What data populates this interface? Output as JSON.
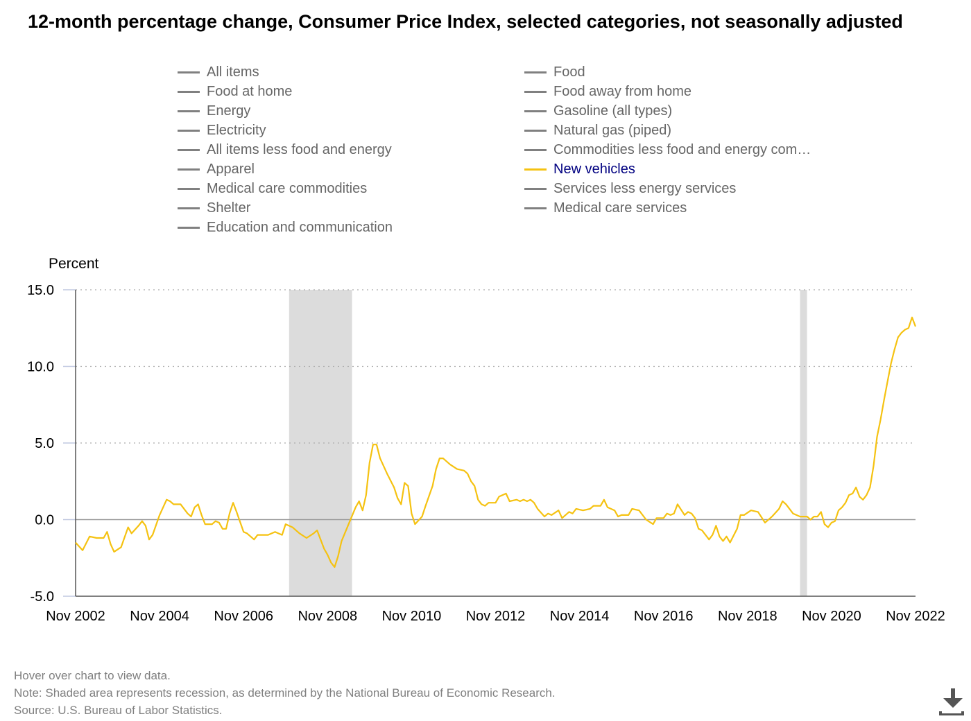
{
  "title": "12-month percentage change, Consumer Price Index, selected categories, not seasonally adjusted",
  "legend": {
    "items": [
      {
        "label": "All items",
        "active": false
      },
      {
        "label": "Food at home",
        "active": false
      },
      {
        "label": "Energy",
        "active": false
      },
      {
        "label": "Electricity",
        "active": false
      },
      {
        "label": "All items less food and energy",
        "active": false
      },
      {
        "label": "Apparel",
        "active": false
      },
      {
        "label": "Medical care commodities",
        "active": false
      },
      {
        "label": "Shelter",
        "active": false
      },
      {
        "label": "Education and communication",
        "active": false
      },
      {
        "label": "Food",
        "active": false
      },
      {
        "label": "Food away from home",
        "active": false
      },
      {
        "label": "Gasoline (all types)",
        "active": false
      },
      {
        "label": "Natural gas (piped)",
        "active": false
      },
      {
        "label": "Commodities less food and energy com…",
        "active": false
      },
      {
        "label": "New vehicles",
        "active": true
      },
      {
        "label": "Services less energy services",
        "active": false
      },
      {
        "label": "Medical care services",
        "active": false
      }
    ]
  },
  "chart_data": {
    "type": "line",
    "ylabel": "Percent",
    "ylim": [
      -5.0,
      15.0
    ],
    "yticks": [
      "15.0",
      "10.0",
      "5.0",
      "0.0",
      "-5.0"
    ],
    "xticks": [
      "Nov 2002",
      "Nov 2004",
      "Nov 2006",
      "Nov 2008",
      "Nov 2010",
      "Nov 2012",
      "Nov 2014",
      "Nov 2016",
      "Nov 2018",
      "Nov 2020",
      "Nov 2022"
    ],
    "xlim": [
      "2002-11",
      "2022-11"
    ],
    "grid": true,
    "recessions": [
      [
        "2007-12",
        "2009-06"
      ],
      [
        "2020-02",
        "2020-04"
      ]
    ],
    "series": [
      {
        "name": "New vehicles",
        "color": "#f5c211",
        "points": [
          [
            "2002-11",
            -1.5
          ],
          [
            "2003-01",
            -2.0
          ],
          [
            "2003-03",
            -1.1
          ],
          [
            "2003-05",
            -1.2
          ],
          [
            "2003-07",
            -1.2
          ],
          [
            "2003-08",
            -0.8
          ],
          [
            "2003-09",
            -1.6
          ],
          [
            "2003-10",
            -2.1
          ],
          [
            "2003-12",
            -1.8
          ],
          [
            "2004-02",
            -0.5
          ],
          [
            "2004-03",
            -0.9
          ],
          [
            "2004-05",
            -0.4
          ],
          [
            "2004-06",
            -0.1
          ],
          [
            "2004-07",
            -0.4
          ],
          [
            "2004-08",
            -1.3
          ],
          [
            "2004-09",
            -1.0
          ],
          [
            "2004-11",
            0.3
          ],
          [
            "2005-01",
            1.3
          ],
          [
            "2005-02",
            1.2
          ],
          [
            "2005-03",
            1.0
          ],
          [
            "2005-05",
            1.0
          ],
          [
            "2005-07",
            0.4
          ],
          [
            "2005-08",
            0.2
          ],
          [
            "2005-09",
            0.8
          ],
          [
            "2005-10",
            1.0
          ],
          [
            "2005-11",
            0.3
          ],
          [
            "2005-12",
            -0.3
          ],
          [
            "2006-02",
            -0.3
          ],
          [
            "2006-03",
            -0.1
          ],
          [
            "2006-04",
            -0.2
          ],
          [
            "2006-05",
            -0.6
          ],
          [
            "2006-06",
            -0.6
          ],
          [
            "2006-07",
            0.4
          ],
          [
            "2006-08",
            1.1
          ],
          [
            "2006-09",
            0.5
          ],
          [
            "2006-11",
            -0.8
          ],
          [
            "2006-12",
            -0.9
          ],
          [
            "2007-02",
            -1.3
          ],
          [
            "2007-03",
            -1.0
          ],
          [
            "2007-06",
            -1.0
          ],
          [
            "2007-07",
            -0.9
          ],
          [
            "2007-08",
            -0.8
          ],
          [
            "2007-10",
            -1.0
          ],
          [
            "2007-11",
            -0.3
          ],
          [
            "2008-01",
            -0.5
          ],
          [
            "2008-03",
            -0.9
          ],
          [
            "2008-05",
            -1.2
          ],
          [
            "2008-07",
            -0.9
          ],
          [
            "2008-08",
            -0.7
          ],
          [
            "2008-09",
            -1.3
          ],
          [
            "2008-10",
            -1.9
          ],
          [
            "2008-11",
            -2.3
          ],
          [
            "2008-12",
            -2.8
          ],
          [
            "2009-01",
            -3.1
          ],
          [
            "2009-02",
            -2.4
          ],
          [
            "2009-03",
            -1.4
          ],
          [
            "2009-05",
            -0.3
          ],
          [
            "2009-07",
            0.8
          ],
          [
            "2009-08",
            1.2
          ],
          [
            "2009-09",
            0.6
          ],
          [
            "2009-10",
            1.6
          ],
          [
            "2009-11",
            3.7
          ],
          [
            "2009-12",
            4.9
          ],
          [
            "2010-01",
            4.9
          ],
          [
            "2010-02",
            4.0
          ],
          [
            "2010-04",
            3.0
          ],
          [
            "2010-06",
            2.1
          ],
          [
            "2010-07",
            1.4
          ],
          [
            "2010-08",
            1.0
          ],
          [
            "2010-09",
            2.4
          ],
          [
            "2010-10",
            2.2
          ],
          [
            "2010-11",
            0.4
          ],
          [
            "2010-12",
            -0.3
          ],
          [
            "2011-02",
            0.2
          ],
          [
            "2011-03",
            0.9
          ],
          [
            "2011-05",
            2.2
          ],
          [
            "2011-06",
            3.3
          ],
          [
            "2011-07",
            4.0
          ],
          [
            "2011-08",
            4.0
          ],
          [
            "2011-10",
            3.6
          ],
          [
            "2011-12",
            3.3
          ],
          [
            "2012-02",
            3.2
          ],
          [
            "2012-03",
            3.0
          ],
          [
            "2012-04",
            2.5
          ],
          [
            "2012-05",
            2.2
          ],
          [
            "2012-06",
            1.3
          ],
          [
            "2012-07",
            1.0
          ],
          [
            "2012-08",
            0.9
          ],
          [
            "2012-09",
            1.1
          ],
          [
            "2012-11",
            1.1
          ],
          [
            "2012-12",
            1.5
          ],
          [
            "2013-02",
            1.7
          ],
          [
            "2013-03",
            1.2
          ],
          [
            "2013-05",
            1.3
          ],
          [
            "2013-06",
            1.2
          ],
          [
            "2013-07",
            1.3
          ],
          [
            "2013-08",
            1.2
          ],
          [
            "2013-09",
            1.3
          ],
          [
            "2013-10",
            1.1
          ],
          [
            "2013-11",
            0.7
          ],
          [
            "2014-01",
            0.2
          ],
          [
            "2014-02",
            0.4
          ],
          [
            "2014-03",
            0.3
          ],
          [
            "2014-05",
            0.6
          ],
          [
            "2014-06",
            0.1
          ],
          [
            "2014-08",
            0.5
          ],
          [
            "2014-09",
            0.4
          ],
          [
            "2014-10",
            0.7
          ],
          [
            "2014-12",
            0.6
          ],
          [
            "2015-02",
            0.7
          ],
          [
            "2015-03",
            0.9
          ],
          [
            "2015-05",
            0.9
          ],
          [
            "2015-06",
            1.3
          ],
          [
            "2015-07",
            0.8
          ],
          [
            "2015-09",
            0.6
          ],
          [
            "2015-10",
            0.2
          ],
          [
            "2015-11",
            0.3
          ],
          [
            "2016-01",
            0.3
          ],
          [
            "2016-02",
            0.7
          ],
          [
            "2016-04",
            0.6
          ],
          [
            "2016-06",
            0.0
          ],
          [
            "2016-08",
            -0.3
          ],
          [
            "2016-09",
            0.1
          ],
          [
            "2016-11",
            0.1
          ],
          [
            "2016-12",
            0.4
          ],
          [
            "2017-01",
            0.3
          ],
          [
            "2017-02",
            0.4
          ],
          [
            "2017-03",
            1.0
          ],
          [
            "2017-05",
            0.3
          ],
          [
            "2017-06",
            0.5
          ],
          [
            "2017-07",
            0.4
          ],
          [
            "2017-08",
            0.1
          ],
          [
            "2017-09",
            -0.6
          ],
          [
            "2017-10",
            -0.7
          ],
          [
            "2017-12",
            -1.3
          ],
          [
            "2018-01",
            -1.0
          ],
          [
            "2018-02",
            -0.4
          ],
          [
            "2018-03",
            -1.1
          ],
          [
            "2018-04",
            -1.4
          ],
          [
            "2018-05",
            -1.1
          ],
          [
            "2018-06",
            -1.5
          ],
          [
            "2018-08",
            -0.6
          ],
          [
            "2018-09",
            0.3
          ],
          [
            "2018-10",
            0.3
          ],
          [
            "2018-12",
            0.6
          ],
          [
            "2019-02",
            0.5
          ],
          [
            "2019-04",
            -0.2
          ],
          [
            "2019-06",
            0.2
          ],
          [
            "2019-08",
            0.7
          ],
          [
            "2019-09",
            1.2
          ],
          [
            "2019-10",
            1.0
          ],
          [
            "2019-12",
            0.4
          ],
          [
            "2020-02",
            0.2
          ],
          [
            "2020-04",
            0.2
          ],
          [
            "2020-05",
            0.0
          ],
          [
            "2020-06",
            0.2
          ],
          [
            "2020-07",
            0.2
          ],
          [
            "2020-08",
            0.5
          ],
          [
            "2020-09",
            -0.3
          ],
          [
            "2020-10",
            -0.5
          ],
          [
            "2020-11",
            -0.2
          ],
          [
            "2020-12",
            -0.1
          ],
          [
            "2021-01",
            0.6
          ],
          [
            "2021-02",
            0.8
          ],
          [
            "2021-03",
            1.1
          ],
          [
            "2021-04",
            1.6
          ],
          [
            "2021-05",
            1.7
          ],
          [
            "2021-06",
            2.1
          ],
          [
            "2021-07",
            1.5
          ],
          [
            "2021-08",
            1.3
          ],
          [
            "2021-09",
            1.6
          ],
          [
            "2021-10",
            2.1
          ],
          [
            "2021-11",
            3.5
          ],
          [
            "2021-12",
            5.4
          ],
          [
            "2022-01",
            6.5
          ],
          [
            "2022-02",
            7.8
          ],
          [
            "2022-03",
            9.0
          ],
          [
            "2022-04",
            10.2
          ],
          [
            "2022-05",
            11.1
          ],
          [
            "2022-06",
            11.9
          ],
          [
            "2022-07",
            12.2
          ],
          [
            "2022-08",
            12.4
          ],
          [
            "2022-09",
            12.5
          ],
          [
            "2022-10",
            13.2
          ],
          [
            "2022-11",
            12.6
          ]
        ]
      }
    ]
  },
  "notes": {
    "hover": "Hover over chart to view data.",
    "recession": "Note: Shaded area represents recession, as determined by the National Bureau of Economic Research.",
    "source": "Source: U.S. Bureau of Labor Statistics."
  },
  "download": {
    "icon": "download-icon"
  }
}
